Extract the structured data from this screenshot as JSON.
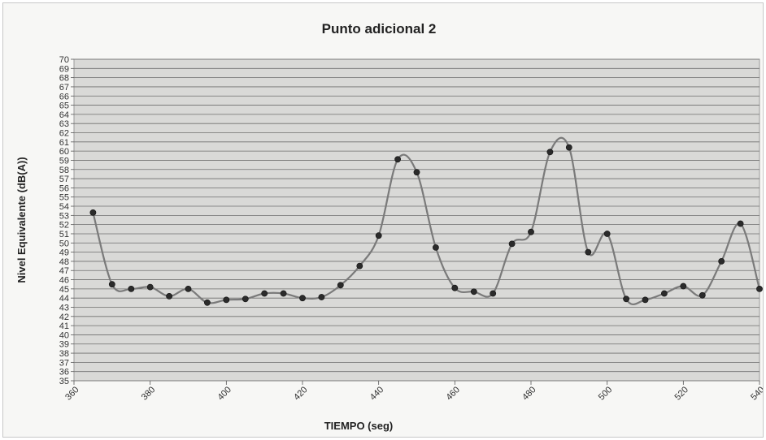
{
  "chart_data": {
    "type": "line",
    "title": "Punto adicional 2",
    "xlabel": "TIEMPO (seg)",
    "ylabel": "Nivel Equivalente (dB(A))",
    "xlim": [
      360,
      540
    ],
    "ylim": [
      35,
      70
    ],
    "x_ticks": [
      360,
      380,
      400,
      420,
      440,
      460,
      480,
      500,
      520,
      540
    ],
    "y_ticks": [
      35,
      36,
      37,
      38,
      39,
      40,
      41,
      42,
      43,
      44,
      45,
      46,
      47,
      48,
      49,
      50,
      51,
      52,
      53,
      54,
      55,
      56,
      57,
      58,
      59,
      60,
      61,
      62,
      63,
      64,
      65,
      66,
      67,
      68,
      69,
      70
    ],
    "grid": true,
    "legend": "none",
    "series": [
      {
        "x": [
          365,
          370,
          375,
          380,
          385,
          390,
          395,
          400,
          405,
          410,
          415,
          420,
          425,
          430,
          435,
          440,
          445,
          450,
          455,
          460,
          465,
          470,
          475,
          480,
          485,
          490,
          495,
          500,
          505,
          510,
          515,
          520,
          525,
          530,
          535,
          540
        ],
        "y": [
          53.3,
          45.5,
          45.0,
          45.2,
          44.2,
          45.0,
          43.5,
          43.8,
          43.9,
          44.5,
          44.5,
          44.0,
          44.1,
          45.4,
          47.5,
          50.8,
          59.1,
          57.7,
          49.5,
          45.1,
          44.7,
          44.5,
          49.9,
          51.2,
          59.9,
          60.4,
          49.0,
          51.0,
          43.9,
          43.8,
          44.5,
          45.3,
          44.3,
          48.0,
          52.1,
          45.0
        ],
        "color": "#2b2b2b"
      }
    ]
  }
}
